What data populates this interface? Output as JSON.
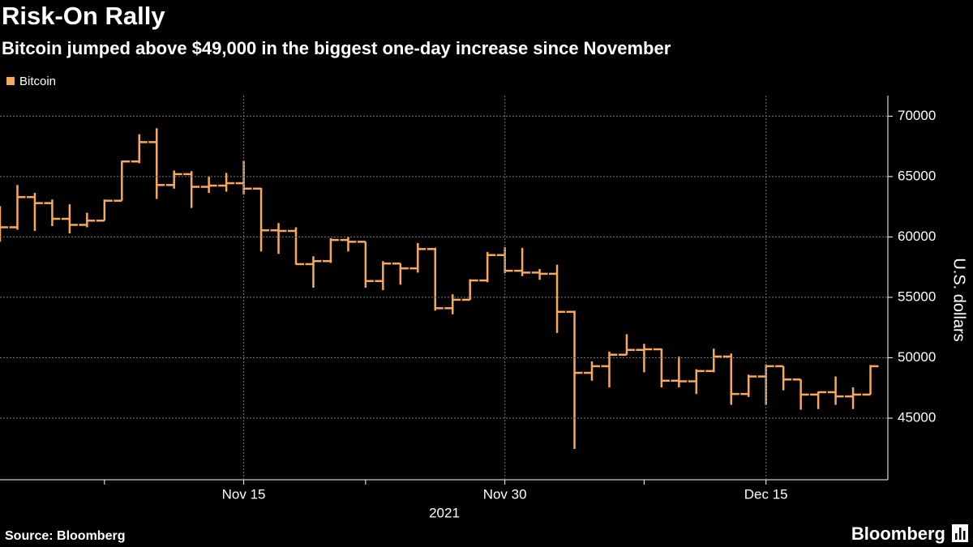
{
  "chart_data": {
    "type": "ohlc",
    "title": "Risk-On Rally",
    "subtitle": "Bitcoin jumped above $49,000 in the biggest one-day increase since November",
    "y_label": "U.S. dollars",
    "x_label": "2021",
    "source": "Source: Bloomberg",
    "logo": "Bloomberg",
    "x": [
      "2021-11-01",
      "2021-11-02",
      "2021-11-03",
      "2021-11-04",
      "2021-11-05",
      "2021-11-06",
      "2021-11-07",
      "2021-11-08",
      "2021-11-09",
      "2021-11-10",
      "2021-11-11",
      "2021-11-12",
      "2021-11-13",
      "2021-11-14",
      "2021-11-15",
      "2021-11-16",
      "2021-11-17",
      "2021-11-18",
      "2021-11-19",
      "2021-11-20",
      "2021-11-21",
      "2021-11-22",
      "2021-11-23",
      "2021-11-24",
      "2021-11-25",
      "2021-11-26",
      "2021-11-27",
      "2021-11-28",
      "2021-11-29",
      "2021-11-30",
      "2021-12-01",
      "2021-12-02",
      "2021-12-03",
      "2021-12-04",
      "2021-12-05",
      "2021-12-06",
      "2021-12-07",
      "2021-12-08",
      "2021-12-09",
      "2021-12-10",
      "2021-12-11",
      "2021-12-12",
      "2021-12-13",
      "2021-12-14",
      "2021-12-15",
      "2021-12-16",
      "2021-12-17",
      "2021-12-18",
      "2021-12-19",
      "2021-12-20",
      "2021-12-21"
    ],
    "series": [
      {
        "name": "Bitcoin",
        "color": "#f6a95a",
        "open": [
          61300,
          60800,
          63300,
          62800,
          61500,
          61000,
          61350,
          63000,
          66250,
          67850,
          64300,
          65200,
          64150,
          64250,
          64450,
          64000,
          60550,
          60500,
          57750,
          58000,
          59750,
          59600,
          56350,
          57800,
          57400,
          59000,
          54100,
          54800,
          56400,
          58500,
          57200,
          57050,
          56950,
          53800,
          48750,
          49300,
          50250,
          50650,
          50700,
          48100,
          48050,
          48900,
          50100,
          47000,
          48450,
          49300,
          48200,
          46950,
          47150,
          46800,
          46950
        ],
        "high": [
          62550,
          64300,
          63650,
          63100,
          62700,
          62000,
          63100,
          66300,
          68500,
          69000,
          65500,
          65450,
          65000,
          65300,
          66300,
          64050,
          61150,
          60800,
          58400,
          59900,
          60000,
          59600,
          58000,
          57800,
          59500,
          59100,
          55250,
          56500,
          58750,
          59150,
          59100,
          57350,
          57700,
          53900,
          49700,
          50500,
          51950,
          51150,
          50750,
          50100,
          49050,
          50750,
          50350,
          48600,
          49450,
          49300,
          48200,
          47200,
          48450,
          47550,
          49400
        ],
        "low": [
          59600,
          60600,
          60500,
          60900,
          60300,
          60800,
          61350,
          63000,
          66100,
          63150,
          64000,
          62400,
          63650,
          63750,
          63500,
          58800,
          58600,
          57700,
          55800,
          57850,
          58800,
          55800,
          55600,
          56050,
          57050,
          53900,
          53600,
          54800,
          56250,
          57000,
          56750,
          56450,
          52050,
          42450,
          48100,
          47550,
          50250,
          48800,
          47550,
          47550,
          47000,
          48800,
          46100,
          46750,
          46100,
          47300,
          45700,
          45750,
          46100,
          45750,
          46950
        ],
        "close": [
          60800,
          63300,
          62800,
          61500,
          61000,
          61350,
          63000,
          66250,
          67850,
          64300,
          65200,
          64150,
          64250,
          64450,
          64000,
          60550,
          60500,
          57750,
          58000,
          59750,
          59600,
          56350,
          57800,
          57400,
          59000,
          54100,
          54800,
          56400,
          58500,
          57200,
          57050,
          56950,
          53800,
          48750,
          49300,
          50250,
          50650,
          50700,
          48100,
          48050,
          48900,
          50100,
          47000,
          48450,
          49300,
          48200,
          46950,
          47150,
          46800,
          46950,
          49300
        ]
      }
    ],
    "xlim": [
      "2021-11-01",
      "2021-12-22"
    ],
    "xticks": [
      {
        "value": "2021-11-15",
        "label": "Nov 15"
      },
      {
        "value": "2021-11-30",
        "label": "Nov 30"
      },
      {
        "value": "2021-12-15",
        "label": "Dec 15"
      }
    ],
    "minor_xticks": [
      "2021-11-07",
      "2021-11-22",
      "2021-12-08"
    ],
    "ylim": [
      39900,
      71700
    ],
    "yticks": [
      45000,
      50000,
      55000,
      60000,
      65000,
      70000
    ],
    "grid": true,
    "legend": "top-left"
  }
}
